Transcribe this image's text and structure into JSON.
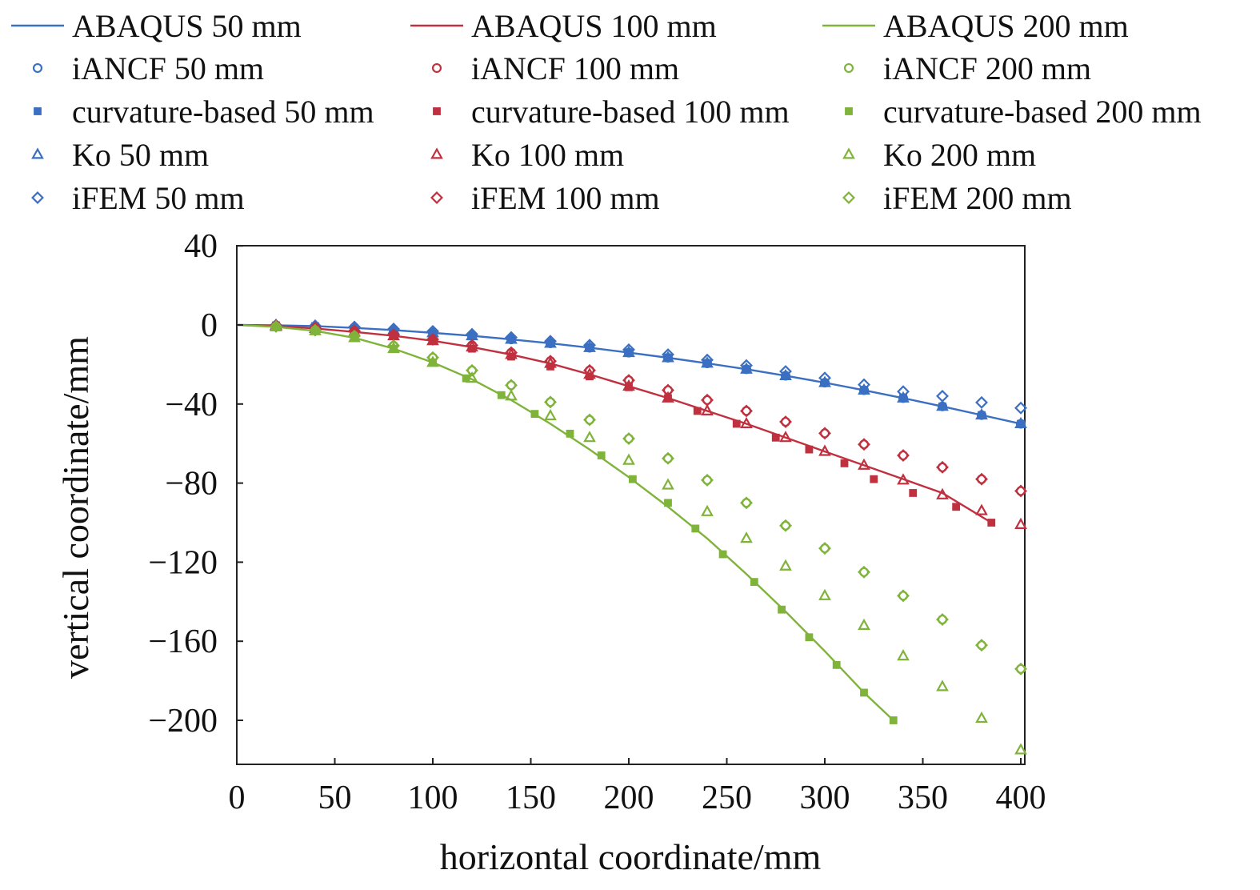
{
  "chart_data": {
    "type": "scatter",
    "title": "",
    "xlabel": "horizontal coordinate/mm",
    "ylabel": "vertical coordinate/mm",
    "xlim": [
      0,
      400
    ],
    "ylim": [
      -220,
      40
    ],
    "x_ticks": [
      "0",
      "50",
      "100",
      "150",
      "200",
      "250",
      "300",
      "350",
      "400"
    ],
    "y_ticks": [
      "40",
      "0",
      "−40",
      "−80",
      "−120",
      "−160",
      "−200"
    ],
    "grid": false,
    "legend_position": "top",
    "groups": [
      {
        "thickness": "50 mm",
        "color": "#3b6fc2"
      },
      {
        "thickness": "100 mm",
        "color": "#c0303f"
      },
      {
        "thickness": "200 mm",
        "color": "#7fb33a"
      }
    ],
    "series": [
      {
        "name": "ABAQUS 50 mm",
        "group": 0,
        "kind": "line",
        "x": [
          0,
          20,
          40,
          60,
          80,
          100,
          120,
          140,
          160,
          180,
          200,
          220,
          240,
          260,
          280,
          300,
          320,
          340,
          360,
          380,
          400
        ],
        "y": [
          0,
          -0.2,
          -0.6,
          -1.5,
          -2.6,
          -4,
          -5.5,
          -7.3,
          -9.3,
          -11.5,
          -14,
          -16.6,
          -19.4,
          -22.4,
          -25.7,
          -29.2,
          -33,
          -37,
          -41.2,
          -45.6,
          -50
        ]
      },
      {
        "name": "iANCF 50 mm",
        "group": 0,
        "marker": "circle",
        "x": [
          20,
          40,
          60,
          80,
          100,
          120,
          140,
          160,
          180,
          200,
          220,
          240,
          260,
          280,
          300,
          320,
          340,
          360,
          380,
          400
        ],
        "y": [
          -0.2,
          -0.6,
          -1.5,
          -2.6,
          -4,
          -5.5,
          -7.3,
          -9.3,
          -11.5,
          -14,
          -16.6,
          -19.4,
          -22.4,
          -25.7,
          -29.2,
          -33,
          -37,
          -41.2,
          -45.6,
          -50
        ]
      },
      {
        "name": "curvature-based 50 mm",
        "group": 0,
        "marker": "square",
        "x": [
          20,
          40,
          60,
          80,
          100,
          120,
          140,
          160,
          180,
          200,
          220,
          240,
          260,
          280,
          300,
          320,
          340,
          360,
          380,
          400
        ],
        "y": [
          -0.2,
          -0.6,
          -1.5,
          -2.6,
          -4,
          -5.5,
          -7.3,
          -9.3,
          -11.5,
          -14,
          -16.6,
          -19.4,
          -22.4,
          -25.7,
          -29.2,
          -33,
          -37,
          -41.2,
          -45.6,
          -50
        ]
      },
      {
        "name": "Ko 50 mm",
        "group": 0,
        "marker": "triangle",
        "x": [
          20,
          40,
          60,
          80,
          100,
          120,
          140,
          160,
          180,
          200,
          220,
          240,
          260,
          280,
          300,
          320,
          340,
          360,
          380,
          400
        ],
        "y": [
          -0.2,
          -0.6,
          -1.5,
          -2.6,
          -4,
          -5.5,
          -7.3,
          -9.3,
          -11.5,
          -14,
          -16.6,
          -19.4,
          -22.4,
          -25.7,
          -29.2,
          -33,
          -37,
          -41.2,
          -45.6,
          -50
        ]
      },
      {
        "name": "iFEM 50 mm",
        "group": 0,
        "marker": "diamond",
        "x": [
          20,
          40,
          60,
          80,
          100,
          120,
          140,
          160,
          180,
          200,
          220,
          240,
          260,
          280,
          300,
          320,
          340,
          360,
          380,
          400
        ],
        "y": [
          -0.1,
          -0.4,
          -1,
          -2,
          -3.2,
          -4.7,
          -6.3,
          -8.2,
          -10.2,
          -12.5,
          -15,
          -17.7,
          -20.5,
          -23.5,
          -26.8,
          -30.2,
          -33.7,
          -36,
          -39.2,
          -42
        ]
      },
      {
        "name": "ABAQUS 100 mm",
        "group": 1,
        "kind": "line",
        "x": [
          0,
          20,
          40,
          60,
          80,
          100,
          120,
          140,
          160,
          180,
          200,
          220,
          240,
          260,
          280,
          300,
          320,
          340,
          360,
          385
        ],
        "y": [
          0,
          -0.5,
          -1.8,
          -3.5,
          -5.5,
          -8,
          -11.2,
          -15,
          -19.5,
          -25,
          -31,
          -37,
          -43.5,
          -50,
          -57,
          -64,
          -71,
          -78,
          -85,
          -100
        ]
      },
      {
        "name": "iANCF 100 mm",
        "group": 1,
        "marker": "circle",
        "x": [
          20,
          40,
          60,
          80,
          100,
          120,
          140,
          160,
          180,
          200,
          220,
          240,
          260,
          280,
          300,
          320,
          340,
          360,
          380,
          400
        ],
        "y": [
          -0.4,
          -1.5,
          -3,
          -5,
          -7.3,
          -10.3,
          -14,
          -18.3,
          -23,
          -28,
          -33,
          -38,
          -43.5,
          -49,
          -54.8,
          -60.4,
          -66,
          -72,
          -78,
          -84
        ]
      },
      {
        "name": "curvature-based 100 mm",
        "group": 1,
        "marker": "square",
        "x": [
          20,
          40,
          60,
          80,
          100,
          120,
          140,
          160,
          180,
          200,
          220,
          235,
          255,
          275,
          292,
          310,
          325,
          345,
          367,
          385
        ],
        "y": [
          -0.5,
          -1.8,
          -3.5,
          -5.5,
          -8,
          -12,
          -16,
          -21,
          -26,
          -31.5,
          -37,
          -43.5,
          -50,
          -57,
          -63,
          -70,
          -78,
          -85,
          -92,
          -100
        ]
      },
      {
        "name": "Ko 100 mm",
        "group": 1,
        "marker": "triangle",
        "x": [
          20,
          40,
          60,
          80,
          100,
          120,
          140,
          160,
          180,
          200,
          220,
          240,
          260,
          280,
          300,
          320,
          340,
          360,
          380,
          400
        ],
        "y": [
          -0.5,
          -1.8,
          -3.5,
          -5.5,
          -8,
          -11.2,
          -15,
          -19.5,
          -25,
          -31,
          -37,
          -43.5,
          -50,
          -57,
          -64,
          -71,
          -78.5,
          -86,
          -94,
          -101
        ]
      },
      {
        "name": "iFEM 100 mm",
        "group": 1,
        "marker": "diamond",
        "x": [
          20,
          40,
          60,
          80,
          100,
          120,
          140,
          160,
          180,
          200,
          220,
          240,
          260,
          280,
          300,
          320,
          340,
          360,
          380,
          400
        ],
        "y": [
          -0.4,
          -1.5,
          -3,
          -5,
          -7.3,
          -10.3,
          -14,
          -18.3,
          -23,
          -28,
          -33,
          -38,
          -43.5,
          -49,
          -54.8,
          -60.4,
          -66,
          -72,
          -78,
          -84
        ]
      },
      {
        "name": "ABAQUS 200 mm",
        "group": 2,
        "kind": "line",
        "x": [
          0,
          20,
          40,
          60,
          80,
          100,
          120,
          140,
          160,
          180,
          200,
          220,
          240,
          260,
          280,
          300,
          320,
          335
        ],
        "y": [
          0,
          -1,
          -3,
          -6.5,
          -12,
          -19,
          -27.5,
          -38,
          -50,
          -63,
          -77,
          -92,
          -108,
          -126,
          -145,
          -165,
          -186,
          -200
        ]
      },
      {
        "name": "iANCF 200 mm",
        "group": 2,
        "marker": "circle",
        "x": [
          20,
          40,
          60,
          80,
          100,
          120,
          140,
          160,
          180,
          200,
          220,
          240,
          260,
          280,
          300,
          320,
          340,
          360,
          380,
          400
        ],
        "y": [
          -0.8,
          -2.7,
          -5.6,
          -10.5,
          -16.5,
          -23,
          -30.5,
          -39,
          -48,
          -57.5,
          -67.5,
          -78.5,
          -90,
          -101.5,
          -113,
          -125,
          -137,
          -149,
          -162,
          -174
        ]
      },
      {
        "name": "curvature-based 200 mm",
        "group": 2,
        "marker": "square",
        "x": [
          20,
          40,
          60,
          80,
          100,
          117,
          135,
          152,
          170,
          186,
          202,
          220,
          234,
          248,
          264,
          278,
          292,
          306,
          320,
          335
        ],
        "y": [
          -1,
          -3,
          -6.5,
          -12,
          -19,
          -27,
          -35.5,
          -45,
          -55,
          -66,
          -78,
          -90,
          -103,
          -116,
          -130,
          -144,
          -158,
          -172,
          -186,
          -200
        ]
      },
      {
        "name": "Ko 200 mm",
        "group": 2,
        "marker": "triangle",
        "x": [
          20,
          40,
          60,
          80,
          100,
          120,
          140,
          160,
          180,
          200,
          220,
          240,
          260,
          280,
          300,
          320,
          340,
          360,
          380,
          400
        ],
        "y": [
          -1,
          -3,
          -6.5,
          -12,
          -19,
          -27,
          -36,
          -46,
          -57,
          -68.5,
          -81,
          -94.5,
          -108,
          -122,
          -137,
          -152,
          -167.5,
          -183,
          -199,
          -215
        ]
      },
      {
        "name": "iFEM 200 mm",
        "group": 2,
        "marker": "diamond",
        "x": [
          20,
          40,
          60,
          80,
          100,
          120,
          140,
          160,
          180,
          200,
          220,
          240,
          260,
          280,
          300,
          320,
          340,
          360,
          380,
          400
        ],
        "y": [
          -0.8,
          -2.7,
          -5.6,
          -10.5,
          -16.5,
          -23,
          -30.5,
          -39,
          -48,
          -57.5,
          -67.5,
          -78.5,
          -90,
          -101.5,
          -113,
          -125,
          -137,
          -149,
          -162,
          -174
        ]
      }
    ]
  }
}
